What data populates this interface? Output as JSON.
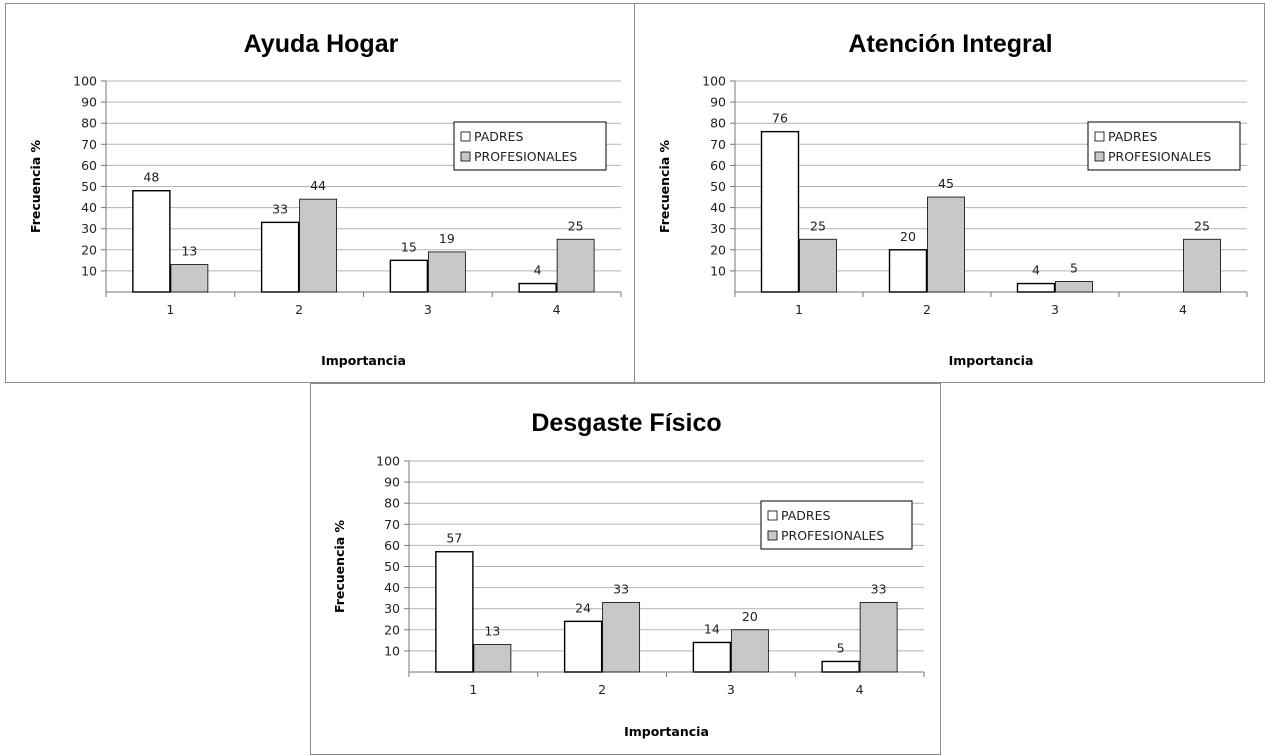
{
  "colors": {
    "padres_fill": "#ffffff",
    "profesionales_fill": "#c8c8c8",
    "bar_stroke": "#000000",
    "grid": "#b3b3b3"
  },
  "chart_data": [
    {
      "type": "bar",
      "title": "Ayuda Hogar",
      "xlabel": "Importancia",
      "ylabel": "Frecuencia %",
      "categories": [
        "1",
        "2",
        "3",
        "4"
      ],
      "ylim": [
        0,
        100
      ],
      "yticks": [
        "10",
        "20",
        "30",
        "40",
        "50",
        "60",
        "70",
        "80",
        "90",
        "100"
      ],
      "grid": true,
      "legend_position": "right",
      "series": [
        {
          "name": "PADRES",
          "values": [
            48,
            33,
            15,
            4
          ]
        },
        {
          "name": "PROFESIONALES",
          "values": [
            13,
            44,
            19,
            25
          ]
        }
      ]
    },
    {
      "type": "bar",
      "title": "Atención Integral",
      "xlabel": "Importancia",
      "ylabel": "Frecuencia %",
      "categories": [
        "1",
        "2",
        "3",
        "4"
      ],
      "ylim": [
        0,
        100
      ],
      "yticks": [
        "10",
        "20",
        "30",
        "40",
        "50",
        "60",
        "70",
        "80",
        "90",
        "100"
      ],
      "grid": true,
      "legend_position": "right",
      "series": [
        {
          "name": "PADRES",
          "values": [
            76,
            20,
            4,
            null
          ]
        },
        {
          "name": "PROFESIONALES",
          "values": [
            25,
            45,
            5,
            25
          ]
        }
      ]
    },
    {
      "type": "bar",
      "title": "Desgaste Físico",
      "xlabel": "Importancia",
      "ylabel": "Frecuencia %",
      "categories": [
        "1",
        "2",
        "3",
        "4"
      ],
      "ylim": [
        0,
        100
      ],
      "yticks": [
        "10",
        "20",
        "30",
        "40",
        "50",
        "60",
        "70",
        "80",
        "90",
        "100"
      ],
      "grid": true,
      "legend_position": "right",
      "series": [
        {
          "name": "PADRES",
          "values": [
            57,
            24,
            14,
            5
          ]
        },
        {
          "name": "PROFESIONALES",
          "values": [
            13,
            33,
            20,
            33
          ]
        }
      ]
    }
  ]
}
